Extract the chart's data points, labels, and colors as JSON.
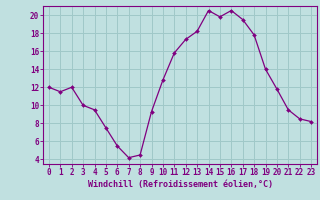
{
  "x": [
    0,
    1,
    2,
    3,
    4,
    5,
    6,
    7,
    8,
    9,
    10,
    11,
    12,
    13,
    14,
    15,
    16,
    17,
    18,
    19,
    20,
    21,
    22,
    23
  ],
  "y": [
    12,
    11.5,
    12,
    10,
    9.5,
    7.5,
    5.5,
    4.2,
    4.5,
    9.3,
    12.8,
    15.8,
    17.3,
    18.2,
    20.5,
    19.8,
    20.5,
    19.5,
    17.8,
    14,
    11.8,
    9.5,
    8.5,
    8.2
  ],
  "line_color": "#800080",
  "marker_color": "#800080",
  "bg_color": "#c0e0e0",
  "grid_color": "#a0c8c8",
  "xlabel": "Windchill (Refroidissement éolien,°C)",
  "ylim": [
    3.5,
    21.0
  ],
  "xlim": [
    -0.5,
    23.5
  ],
  "yticks": [
    4,
    6,
    8,
    10,
    12,
    14,
    16,
    18,
    20
  ],
  "xticks": [
    0,
    1,
    2,
    3,
    4,
    5,
    6,
    7,
    8,
    9,
    10,
    11,
    12,
    13,
    14,
    15,
    16,
    17,
    18,
    19,
    20,
    21,
    22,
    23
  ],
  "label_fontsize": 6.0,
  "tick_fontsize": 5.5,
  "axis_color": "#800080"
}
